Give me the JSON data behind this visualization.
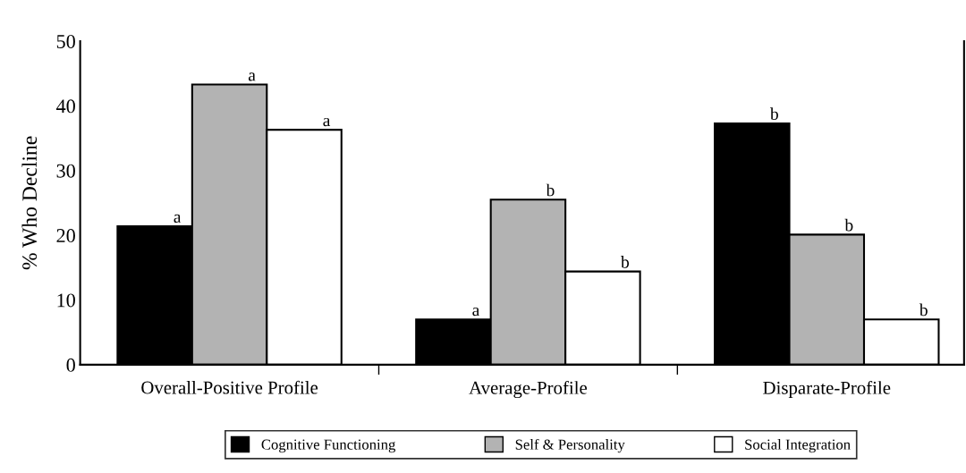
{
  "chart_data": {
    "type": "bar",
    "ylabel": "% Who Decline",
    "categories": [
      "Overall-Positive Profile",
      "Average-Profile",
      "Disparate-Profile"
    ],
    "series": [
      {
        "name": "Cognitive Functioning",
        "color": "#000000",
        "values": [
          21.4,
          7.0,
          37.3
        ],
        "value_labels": [
          "a",
          "a",
          "b"
        ]
      },
      {
        "name": "Self & Personality",
        "color": "#b3b3b3",
        "values": [
          43.3,
          25.5,
          20.1
        ],
        "value_labels": [
          "a",
          "b",
          "b"
        ]
      },
      {
        "name": "Social Integration",
        "color": "#ffffff",
        "values": [
          36.3,
          14.4,
          7.0
        ],
        "value_labels": [
          "a",
          "b",
          "b"
        ]
      }
    ],
    "ylim": [
      0,
      50
    ],
    "yticks": [
      0,
      10,
      20,
      30,
      40,
      50
    ],
    "grid": false,
    "legend": "bottom"
  }
}
